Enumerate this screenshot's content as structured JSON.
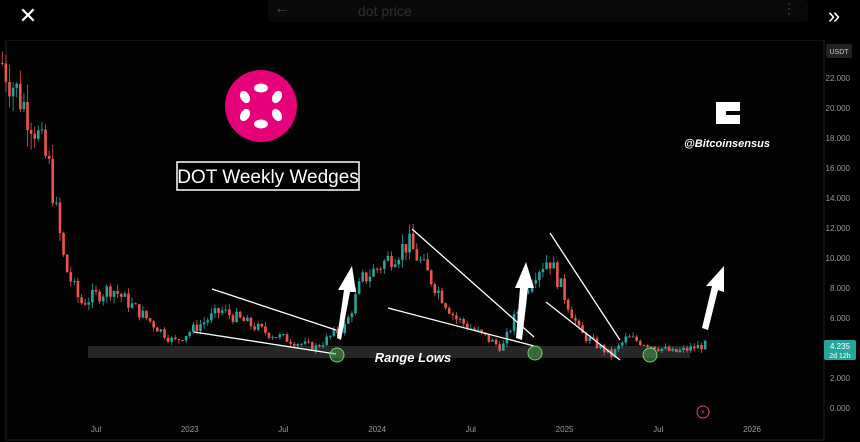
{
  "topbar": {
    "close_icon": "close-icon",
    "search_text": "dot price",
    "collapse_icon": "double-chevron-right-icon"
  },
  "chart_data": {
    "type": "candlestick",
    "currency": "USDT",
    "y_ticks": [
      "0.000",
      "2.000",
      "4.000",
      "6.000",
      "8.000",
      "10.000",
      "12.000",
      "14.000",
      "16.000",
      "18.000",
      "20.000",
      "22.000"
    ],
    "ylim": [
      0,
      23.8
    ],
    "x_ticks": [
      "Jul",
      "2023",
      "Jul",
      "2024",
      "Jul",
      "2025",
      "Jul",
      "2026"
    ],
    "xlim": [
      "2022-01",
      "2026-06"
    ],
    "last_price": "4.235",
    "countdown": "2d 12h",
    "title": "DOT Weekly Wedges",
    "watermark": "@Bitcoinsensus",
    "annotation": "Range Lows",
    "colors": {
      "up": "#26a69a",
      "down": "#ef5350",
      "logo": "#e6007a",
      "price_tag": "#26a69a"
    },
    "approx_weekly_close_path": [
      {
        "date": "2022-01",
        "value": 23.0
      },
      {
        "date": "2022-03",
        "value": 19.0
      },
      {
        "date": "2022-04",
        "value": 16.0
      },
      {
        "date": "2022-05",
        "value": 9.5
      },
      {
        "date": "2022-06",
        "value": 7.0
      },
      {
        "date": "2022-08",
        "value": 8.0
      },
      {
        "date": "2022-10",
        "value": 6.2
      },
      {
        "date": "2022-12",
        "value": 4.4
      },
      {
        "date": "2023-03",
        "value": 6.5
      },
      {
        "date": "2023-06",
        "value": 5.0
      },
      {
        "date": "2023-09",
        "value": 4.0
      },
      {
        "date": "2023-11",
        "value": 5.5
      },
      {
        "date": "2023-12",
        "value": 8.5
      },
      {
        "date": "2024-03",
        "value": 11.0
      },
      {
        "date": "2024-06",
        "value": 6.0
      },
      {
        "date": "2024-09",
        "value": 4.0
      },
      {
        "date": "2024-11",
        "value": 9.0
      },
      {
        "date": "2024-12",
        "value": 10.0
      },
      {
        "date": "2025-02",
        "value": 5.0
      },
      {
        "date": "2025-04",
        "value": 3.5
      },
      {
        "date": "2025-05",
        "value": 4.7
      },
      {
        "date": "2025-08",
        "value": 3.7
      },
      {
        "date": "2025-10",
        "value": 4.2
      }
    ]
  }
}
